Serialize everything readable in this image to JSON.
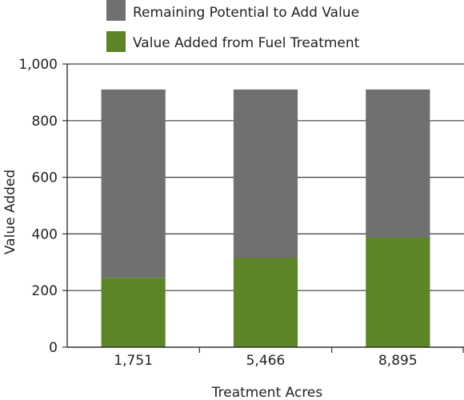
{
  "chart_data": {
    "type": "bar",
    "stacked": true,
    "title": "",
    "xlabel": "Treatment Acres",
    "ylabel": "Value Added",
    "ylim": [
      0,
      1000
    ],
    "yticks": [
      0,
      200,
      400,
      600,
      800,
      1000
    ],
    "ytick_labels": [
      "0",
      "200",
      "400",
      "600",
      "800",
      "1,000"
    ],
    "grid": "horizontal",
    "legend_position": "top",
    "categories": [
      "1,751",
      "5,466",
      "8,895"
    ],
    "series": [
      {
        "name": "Value Added from Fuel Treatment",
        "color": "#5d8527",
        "values": [
          245,
          315,
          387
        ]
      },
      {
        "name": "Remaining Potential to Add Value",
        "color": "#707070",
        "values": [
          665,
          595,
          523
        ]
      }
    ]
  }
}
